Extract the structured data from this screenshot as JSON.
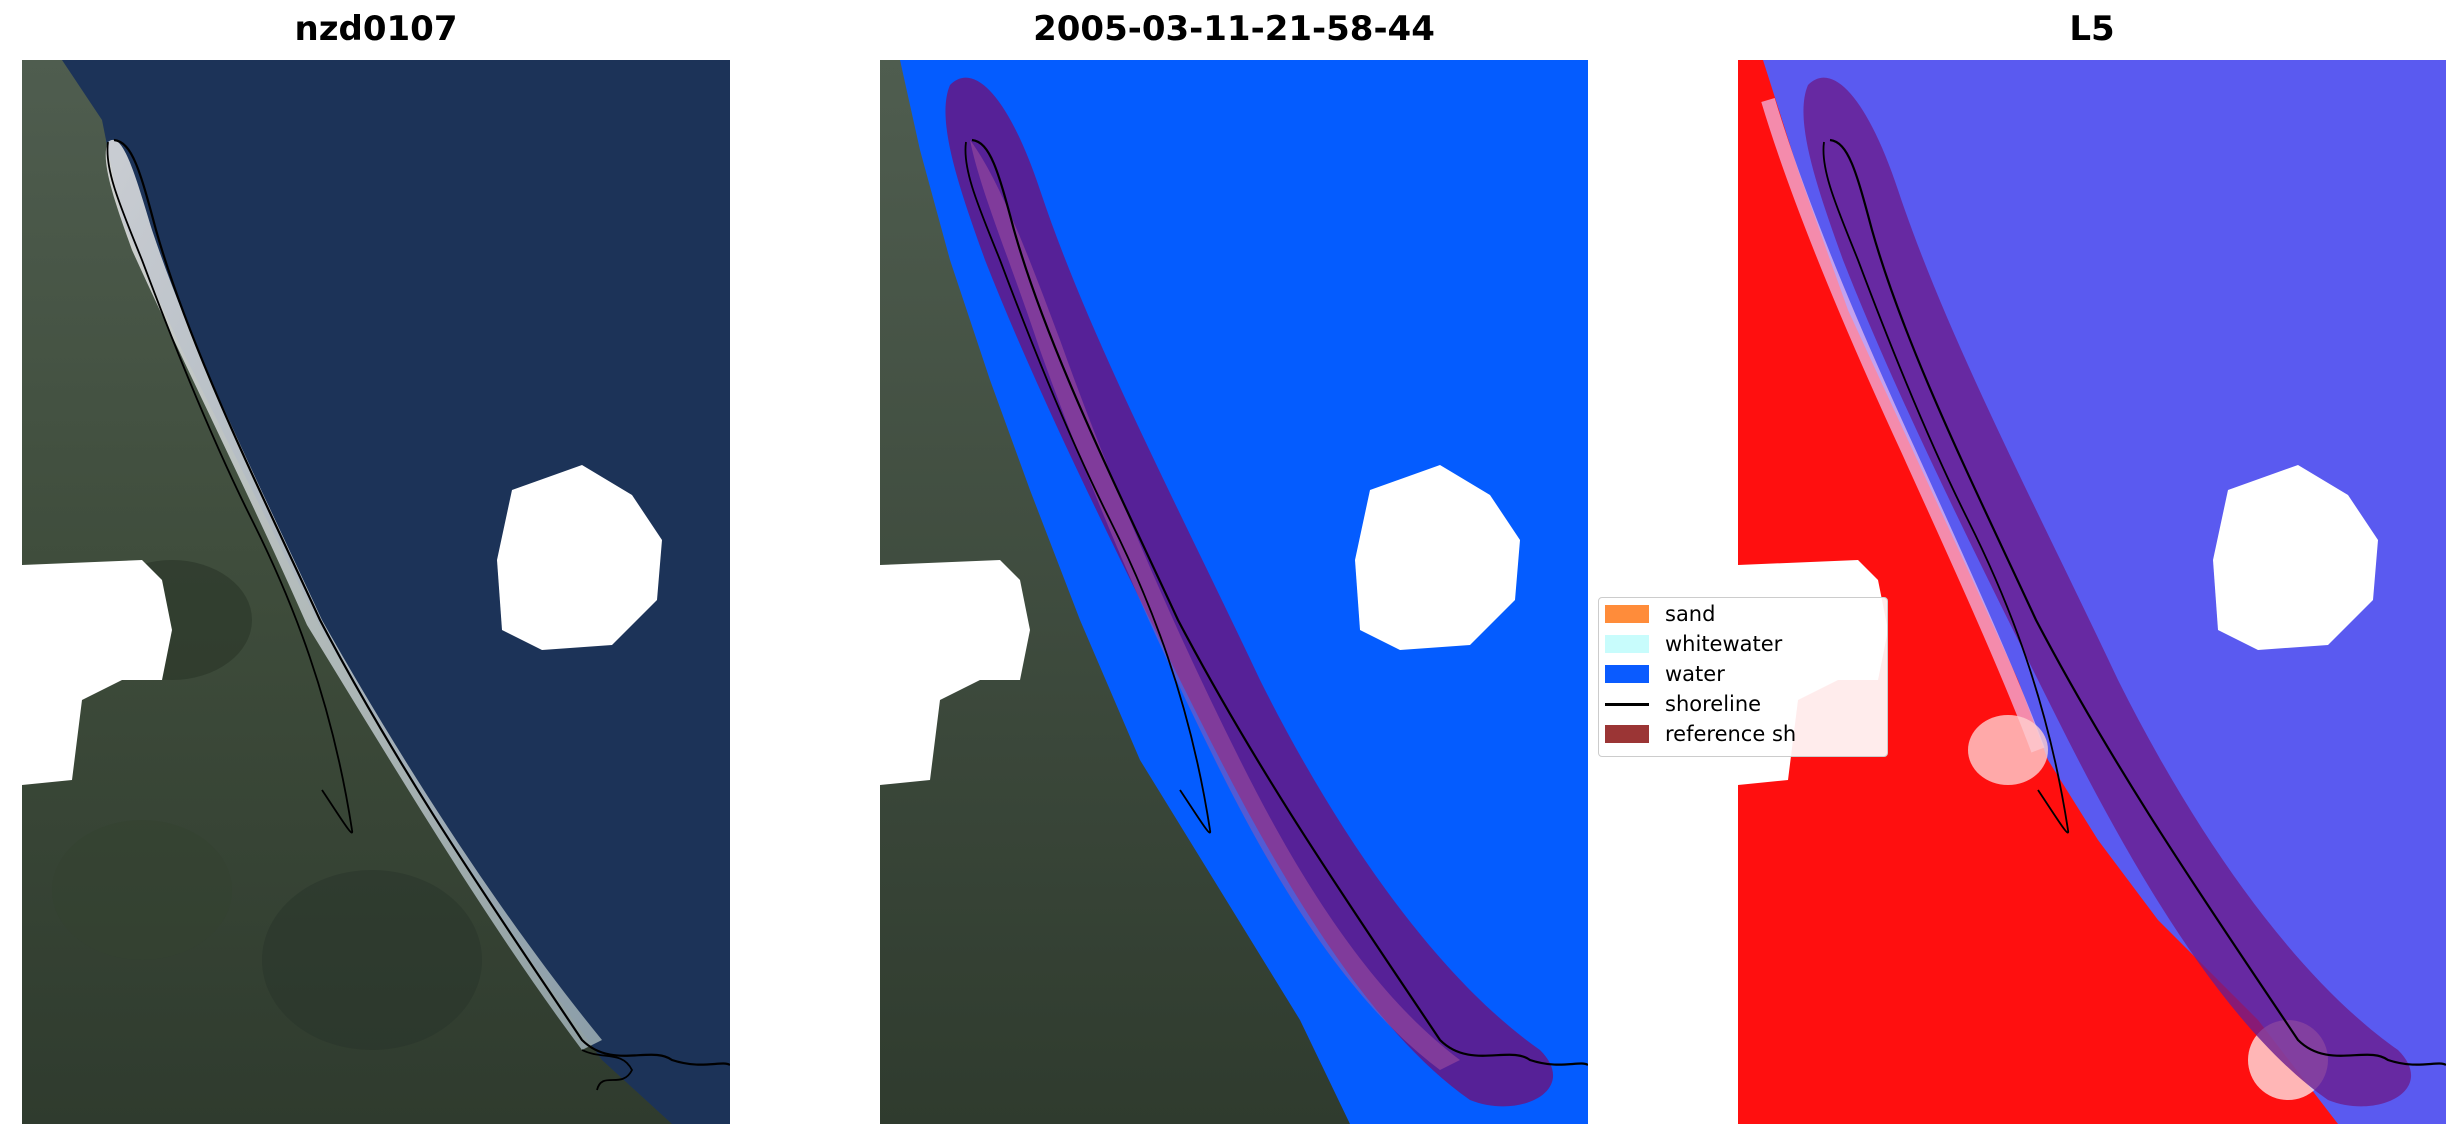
{
  "panels": [
    {
      "title": "nzd0107",
      "kind": "rgb"
    },
    {
      "title": "2005-03-11-21-58-44",
      "kind": "classified"
    },
    {
      "title": "L5",
      "kind": "index"
    }
  ],
  "legend": {
    "items": [
      {
        "label": "sand",
        "type": "patch",
        "color": "#ff8c3a"
      },
      {
        "label": "whitewater",
        "type": "patch",
        "color": "#c8fcfc"
      },
      {
        "label": "water",
        "type": "patch",
        "color": "#0a5bff"
      },
      {
        "label": "shoreline",
        "type": "line",
        "color": "#000000"
      },
      {
        "label": "reference sh",
        "type": "patch",
        "color": "#9b3535"
      }
    ]
  },
  "colors": {
    "ocean_rgb": "#1c3358",
    "land_rgb": "#3c4a3a",
    "water_class": "#045cff",
    "buffer": "#6a1d8f",
    "index_land": "#ff0000",
    "index_water": "#5a5af0"
  }
}
